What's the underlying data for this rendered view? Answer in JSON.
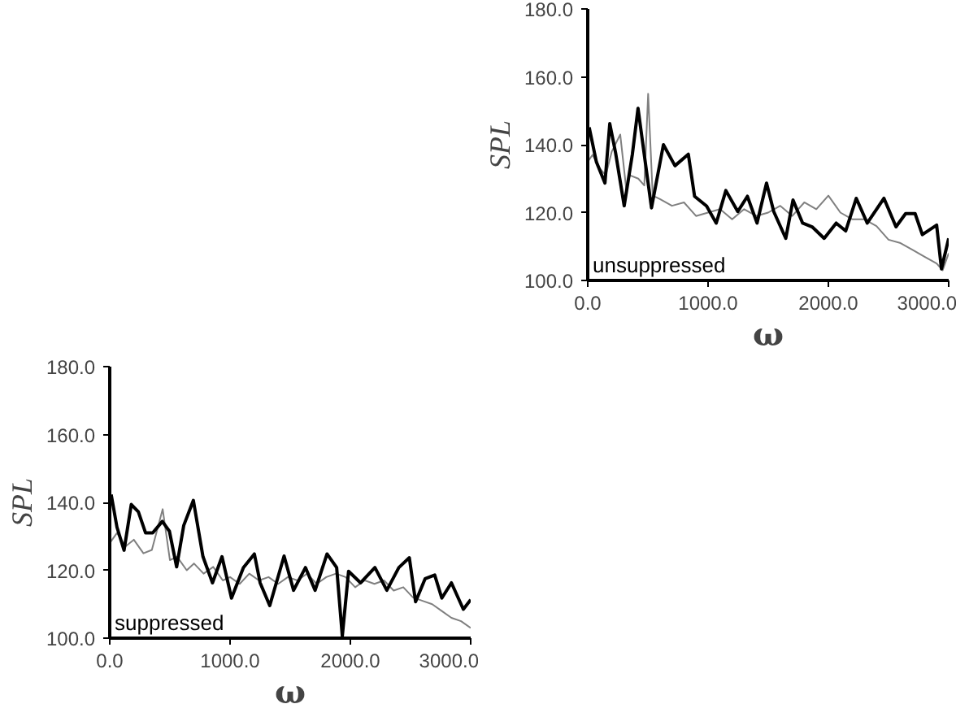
{
  "chart_data": [
    {
      "type": "line",
      "xlabel": "ω",
      "ylabel": "SPL",
      "annotations": [
        "unsuppressed"
      ],
      "grid": false,
      "xlim": [
        0,
        3000
      ],
      "ylim": [
        100,
        180
      ],
      "xticks": [
        {
          "value": 0,
          "label": "0.0"
        },
        {
          "value": 1000,
          "label": "1000.0"
        },
        {
          "value": 2000,
          "label": "2000.0"
        },
        {
          "value": 3000,
          "label": "3000.0"
        }
      ],
      "yticks": [
        {
          "value": 100,
          "label": "100.0"
        },
        {
          "value": 120,
          "label": "120.0"
        },
        {
          "value": 140,
          "label": "140.0"
        },
        {
          "value": 160,
          "label": "160.0"
        },
        {
          "value": 180,
          "label": "180.0"
        }
      ],
      "series": [
        {
          "color": "#808080",
          "x": [
            0,
            40,
            100,
            150,
            200,
            270,
            320,
            350,
            420,
            470,
            502,
            540,
            600,
            700,
            800,
            900,
            1000,
            1100,
            1200,
            1300,
            1400,
            1500,
            1600,
            1700,
            1800,
            1900,
            2000,
            2100,
            2200,
            2300,
            2400,
            2500,
            2600,
            2700,
            2800,
            2900,
            2950,
            3000
          ],
          "values": [
            135,
            137,
            133,
            131,
            138,
            143,
            127,
            131,
            130,
            128,
            155,
            125,
            124,
            122,
            123,
            119,
            120,
            121,
            118,
            121,
            119,
            120,
            122,
            119,
            123,
            121,
            125,
            120,
            118,
            118,
            116,
            112,
            111,
            109,
            107,
            105,
            103,
            108
          ]
        },
        {
          "color": "#000000",
          "x": [
            12,
            72,
            143,
            183,
            231,
            303,
            371,
            418,
            478,
            530,
            629,
            725,
            836,
            888,
            988,
            1068,
            1148,
            1247,
            1327,
            1407,
            1486,
            1546,
            1646,
            1706,
            1786,
            1865,
            1965,
            2065,
            2144,
            2232,
            2323,
            2462,
            2562,
            2642,
            2721,
            2781,
            2900,
            2940,
            3000
          ],
          "values": [
            145.1,
            134.9,
            128.7,
            146.2,
            137.7,
            122,
            137.2,
            150.7,
            134.9,
            121.4,
            140,
            133.8,
            137.2,
            124.8,
            121.9,
            116.9,
            126.5,
            120.3,
            124.8,
            116.9,
            128.7,
            120.3,
            112.4,
            123.7,
            116.9,
            115.8,
            112.4,
            116.9,
            114.6,
            124.2,
            116.9,
            124.2,
            115.8,
            119.7,
            119.7,
            113.5,
            116.3,
            103.4,
            112.4
          ]
        }
      ]
    },
    {
      "type": "line",
      "xlabel": "ω",
      "ylabel": "SPL",
      "annotations": [
        "suppressed"
      ],
      "grid": false,
      "xlim": [
        0,
        3000
      ],
      "ylim": [
        100,
        180
      ],
      "xticks": [
        {
          "value": 0,
          "label": "0.0"
        },
        {
          "value": 1000,
          "label": "1000.0"
        },
        {
          "value": 2000,
          "label": "2000.0"
        },
        {
          "value": 3000,
          "label": "3000.0"
        }
      ],
      "yticks": [
        {
          "value": 100,
          "label": "100.0"
        },
        {
          "value": 120,
          "label": "120.0"
        },
        {
          "value": 140,
          "label": "140.0"
        },
        {
          "value": 160,
          "label": "160.0"
        },
        {
          "value": 180,
          "label": "180.0"
        }
      ],
      "series": [
        {
          "color": "#808080",
          "x": [
            0,
            60,
            130,
            200,
            280,
            350,
            440,
            500,
            560,
            640,
            700,
            780,
            860,
            940,
            1000,
            1080,
            1160,
            1240,
            1320,
            1400,
            1480,
            1560,
            1640,
            1720,
            1800,
            1880,
            1960,
            2040,
            2120,
            2200,
            2280,
            2360,
            2440,
            2520,
            2600,
            2680,
            2760,
            2840,
            2920,
            3000
          ],
          "values": [
            128,
            131,
            127,
            129,
            125,
            126,
            138,
            123,
            124,
            120,
            122,
            119,
            121,
            117,
            118,
            116,
            119,
            117,
            118,
            116,
            118,
            117,
            119,
            116,
            118,
            119,
            118,
            115,
            117,
            116,
            117,
            114,
            115,
            112,
            111,
            110,
            108,
            106,
            105,
            103
          ]
        },
        {
          "color": "#000000",
          "x": [
            12,
            60,
            119,
            179,
            238,
            298,
            357,
            437,
            496,
            556,
            615,
            695,
            775,
            854,
            933,
            1012,
            1111,
            1202,
            1250,
            1330,
            1449,
            1528,
            1627,
            1707,
            1806,
            1886,
            1933,
            1985,
            2085,
            2204,
            2303,
            2403,
            2490,
            2542,
            2621,
            2701,
            2760,
            2840,
            2939,
            3000
          ],
          "values": [
            142.3,
            132.7,
            125.9,
            139.4,
            137.2,
            131,
            131,
            134.4,
            131.5,
            121,
            133.2,
            140.6,
            124,
            116.3,
            124,
            111.8,
            120.8,
            124.8,
            116.3,
            109.6,
            124.2,
            114.1,
            120.8,
            114.1,
            124.8,
            120.8,
            100.6,
            119.7,
            116.3,
            120.8,
            114.1,
            120.8,
            123.7,
            110.7,
            117.5,
            118.6,
            111.8,
            116.3,
            108.5,
            111.3
          ]
        }
      ]
    }
  ]
}
